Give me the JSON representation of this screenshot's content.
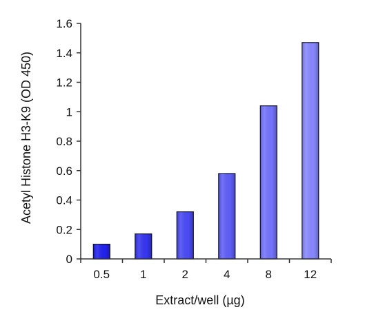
{
  "chart_data": {
    "type": "bar",
    "title": "",
    "xlabel": "Extract/well (µg)",
    "ylabel": "Acetyl Histone H3-K9 (OD 450)",
    "categories": [
      "0.5",
      "1",
      "2",
      "4",
      "8",
      "12"
    ],
    "values": [
      0.1,
      0.17,
      0.32,
      0.58,
      1.04,
      1.47
    ],
    "ylim": [
      0,
      1.6
    ],
    "yticks": [
      "0",
      "0.2",
      "0.4",
      "0.6",
      "0.8",
      "1",
      "1.2",
      "1.4",
      "1.6"
    ],
    "grid": false,
    "legend": "none",
    "colors": {
      "bar_start": "#2222ee",
      "bar_end": "#8888ff",
      "axis": "#333333"
    }
  }
}
